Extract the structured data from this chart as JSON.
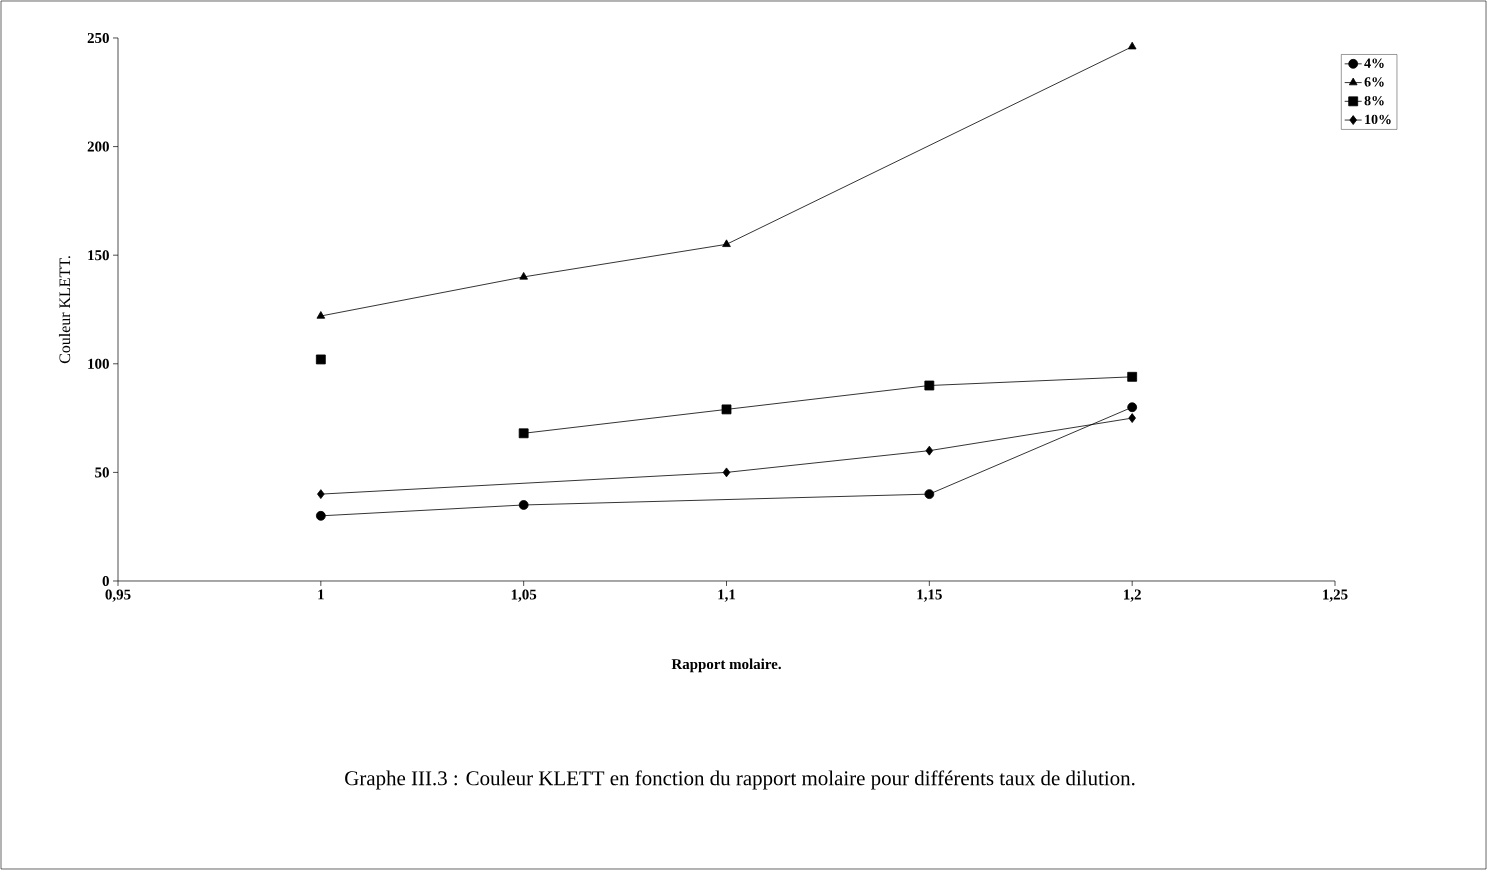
{
  "chart_data": {
    "type": "line",
    "xlabel": "Rapport molaire.",
    "ylabel": "Couleur KLETT.",
    "xlim": [
      0.95,
      1.25
    ],
    "ylim": [
      0,
      250
    ],
    "xticks": [
      {
        "value": 0.95,
        "label": "0,95"
      },
      1,
      {
        "value": 1.05,
        "label": "1,05"
      },
      {
        "value": 1.1,
        "label": "1,1"
      },
      {
        "value": 1.15,
        "label": "1,15"
      },
      {
        "value": 1.2,
        "label": "1,2"
      },
      {
        "value": 1.25,
        "label": "1,25"
      }
    ],
    "yticks": [
      0,
      50,
      100,
      150,
      200,
      250
    ],
    "grid": false,
    "legend": "top right",
    "line_style": "solid",
    "series": [
      {
        "name": "4%",
        "color": "#000000",
        "marker": "circle",
        "x": [
          1,
          1.05,
          1.15,
          1.2
        ],
        "values": [
          30,
          35,
          40,
          80
        ]
      },
      {
        "name": "6%",
        "color": "#000000",
        "marker": "triangle",
        "x": [
          1,
          1.05,
          1.1,
          1.2
        ],
        "values": [
          122,
          140,
          155,
          246
        ]
      },
      {
        "name": "8%",
        "color": "#000000",
        "marker": "square",
        "x": [
          1.05,
          1.1,
          1.15,
          1.2
        ],
        "values": [
          68,
          79,
          90,
          94
        ]
      },
      {
        "name": "10%",
        "color": "#000000",
        "marker": "diamond",
        "x": [
          1,
          1.1,
          1.15,
          1.2
        ],
        "values": [
          40,
          50,
          60,
          75
        ]
      },
      {
        "type": "scatter",
        "color": "#000000",
        "marker": "square",
        "x": [
          1
        ],
        "values": [
          102
        ]
      }
    ],
    "annotations": [
      "Graphe III.3 : Couleur KLETT en fonction du rapport molaire pour différents taux de dilution."
    ]
  }
}
